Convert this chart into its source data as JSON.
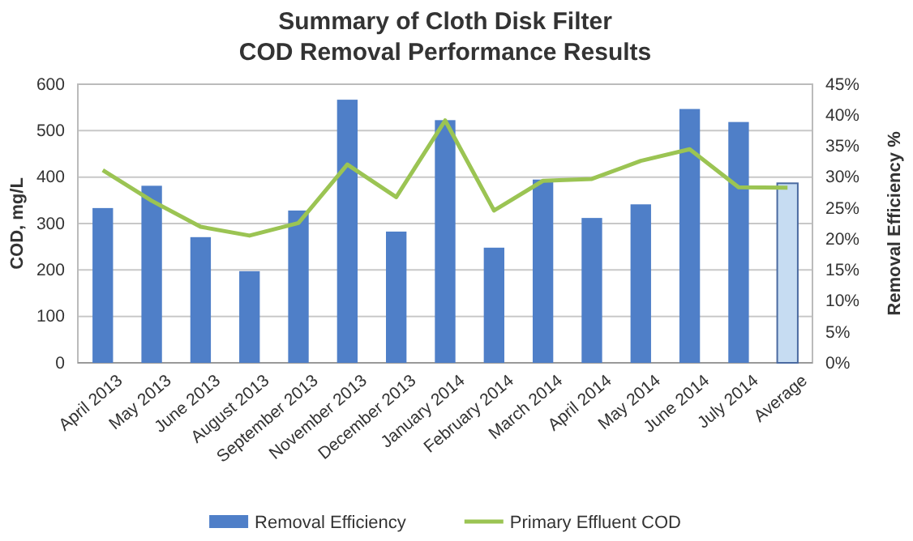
{
  "chart_data": {
    "type": "bar",
    "title": "Summary of Cloth Disk Filter\nCOD Removal Performance Results",
    "ylabel": "COD, mg/L",
    "y2label": "Removal Efficiency %",
    "categories": [
      "April 2013",
      "May 2013",
      "June 2013",
      "August 2013",
      "September 2013",
      "November 2013",
      "December 2013",
      "January 2014",
      "February 2014",
      "March  2014",
      "April  2014",
      "May 2014",
      "June  2014",
      "July  2014",
      "Average"
    ],
    "series": [
      {
        "name": "Removal Efficiency",
        "axis": "y2",
        "color": "#4f7fc8",
        "colors": [
          "#4f7fc8",
          "#4f7fc8",
          "#4f7fc8",
          "#4f7fc8",
          "#4f7fc8",
          "#4f7fc8",
          "#4f7fc8",
          "#4f7fc8",
          "#4f7fc8",
          "#4f7fc8",
          "#4f7fc8",
          "#4f7fc8",
          "#4f7fc8",
          "#4f7fc8",
          "#c6dcf2"
        ],
        "values": [
          25,
          28.6,
          20.3,
          14.8,
          24.6,
          42.5,
          21.2,
          39.2,
          18.6,
          29.6,
          23.4,
          25.6,
          41,
          38.9,
          29
        ]
      },
      {
        "name": "Primary Effluent COD",
        "type": "line",
        "color": "#9bc453",
        "values": [
          415,
          349,
          293,
          274,
          301,
          427,
          357,
          522,
          328,
          392,
          396,
          435,
          460,
          378,
          377
        ]
      }
    ],
    "ylim": [
      0,
      600
    ],
    "yticks": [
      0,
      100,
      200,
      300,
      400,
      500,
      600
    ],
    "y2lim": [
      0,
      45
    ],
    "y2ticks": [
      {
        "value": 0,
        "label": "0%"
      },
      {
        "value": 5,
        "label": "5%"
      },
      {
        "value": 10,
        "label": "10%"
      },
      {
        "value": 15,
        "label": "15%"
      },
      {
        "value": 20,
        "label": "20%"
      },
      {
        "value": 25,
        "label": "25%"
      },
      {
        "value": 30,
        "label": "30%"
      },
      {
        "value": 35,
        "label": "35%"
      },
      {
        "value": 40,
        "label": "40%"
      },
      {
        "value": 45,
        "label": "45%"
      }
    ],
    "grid": "y",
    "legend": "bottom",
    "marker": "none",
    "line_style": "solid"
  }
}
